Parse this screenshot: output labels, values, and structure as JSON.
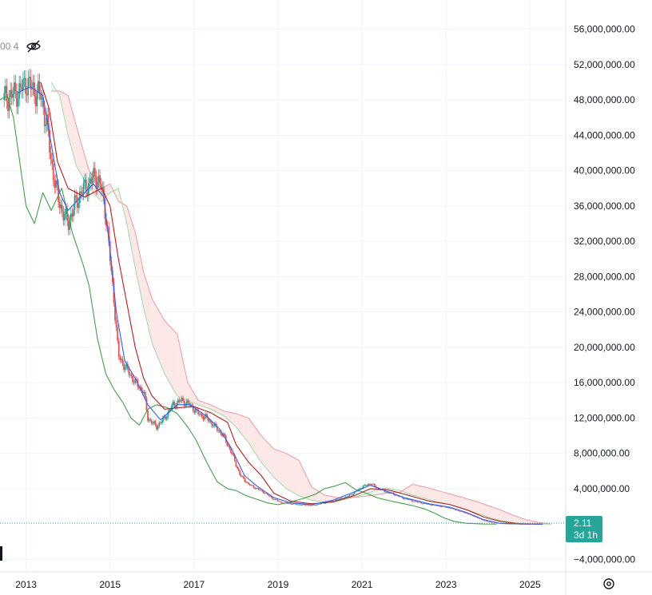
{
  "legend": {
    "fragment": "00 4"
  },
  "price_tag": {
    "value": "2.11",
    "countdown": "3d 1h"
  },
  "colors": {
    "tenkan": "#2962ff",
    "kijun": "#b71c1c",
    "lagging": "#43a047",
    "span_a": "#a5d6a7",
    "span_b": "#ef9a9a",
    "cloud_bull": "#e8f5e9",
    "cloud_bear": "#fde5e5",
    "candle_up": "#26a69a",
    "candle_down": "#ef5350",
    "price_tag_bg": "#26a69a"
  },
  "icons": {
    "visibility": "eye-off-icon",
    "settings": "gear-icon"
  },
  "chart_data": {
    "type": "line",
    "indicator": "ichimoku",
    "x_ticks": [
      "2013",
      "2015",
      "2017",
      "2019",
      "2021",
      "2023",
      "2025"
    ],
    "x_tick_years": [
      2013,
      2015,
      2017,
      2019,
      2021,
      2023,
      2025
    ],
    "y_ticks": [
      {
        "value": 56000000,
        "label": "56,000,000.00"
      },
      {
        "value": 52000000,
        "label": "52,000,000.00"
      },
      {
        "value": 48000000,
        "label": "48,000,000.00"
      },
      {
        "value": 44000000,
        "label": "44,000,000.00"
      },
      {
        "value": 40000000,
        "label": "40,000,000.00"
      },
      {
        "value": 36000000,
        "label": "36,000,000.00"
      },
      {
        "value": 32000000,
        "label": "32,000,000.00"
      },
      {
        "value": 28000000,
        "label": "28,000,000.00"
      },
      {
        "value": 24000000,
        "label": "24,000,000.00"
      },
      {
        "value": 20000000,
        "label": "20,000,000.00"
      },
      {
        "value": 16000000,
        "label": "16,000,000.00"
      },
      {
        "value": 12000000,
        "label": "12,000,000.00"
      },
      {
        "value": 8000000,
        "label": "8,000,000.00"
      },
      {
        "value": 4000000,
        "label": "4,000,000.00"
      },
      {
        "value": -4000000,
        "label": "−4,000,000.00"
      }
    ],
    "ylim": [
      -5400000,
      59300000
    ],
    "xlim": [
      2012.38,
      2025.85
    ],
    "last_value": 2.11,
    "price": [
      [
        2012.45,
        48000000
      ],
      [
        2012.85,
        49000000
      ],
      [
        2013.0,
        50000000
      ],
      [
        2013.2,
        49000000
      ],
      [
        2013.35,
        48500000
      ],
      [
        2013.5,
        45000000
      ],
      [
        2013.6,
        41000000
      ],
      [
        2013.75,
        37000000
      ],
      [
        2013.9,
        35000000
      ],
      [
        2014.0,
        34000000
      ],
      [
        2014.15,
        36000000
      ],
      [
        2014.3,
        37500000
      ],
      [
        2014.5,
        38500000
      ],
      [
        2014.65,
        39500000
      ],
      [
        2014.8,
        38000000
      ],
      [
        2014.9,
        35000000
      ],
      [
        2015.0,
        30000000
      ],
      [
        2015.1,
        25000000
      ],
      [
        2015.2,
        19000000
      ],
      [
        2015.4,
        17500000
      ],
      [
        2015.6,
        16000000
      ],
      [
        2015.8,
        15000000
      ],
      [
        2015.9,
        12000000
      ],
      [
        2016.1,
        11000000
      ],
      [
        2016.3,
        12000000
      ],
      [
        2016.5,
        13500000
      ],
      [
        2016.7,
        14000000
      ],
      [
        2016.9,
        13500000
      ],
      [
        2017.1,
        12500000
      ],
      [
        2017.3,
        12000000
      ],
      [
        2017.5,
        11000000
      ],
      [
        2017.7,
        10000000
      ],
      [
        2017.9,
        8000000
      ],
      [
        2018.1,
        5500000
      ],
      [
        2018.3,
        4500000
      ],
      [
        2018.5,
        4000000
      ],
      [
        2018.7,
        3500000
      ],
      [
        2018.9,
        2800000
      ],
      [
        2019.1,
        2400000
      ],
      [
        2019.3,
        2300000
      ],
      [
        2019.5,
        2200000
      ],
      [
        2019.8,
        2100000
      ],
      [
        2020.0,
        2300000
      ],
      [
        2020.3,
        2600000
      ],
      [
        2020.6,
        3000000
      ],
      [
        2020.8,
        3500000
      ],
      [
        2021.0,
        4200000
      ],
      [
        2021.2,
        4600000
      ],
      [
        2021.4,
        4000000
      ],
      [
        2021.6,
        3600000
      ],
      [
        2021.8,
        3300000
      ],
      [
        2022.0,
        2900000
      ],
      [
        2022.3,
        2500000
      ],
      [
        2022.6,
        2200000
      ],
      [
        2022.9,
        2000000
      ],
      [
        2023.1,
        1800000
      ],
      [
        2023.3,
        1500000
      ],
      [
        2023.5,
        1200000
      ],
      [
        2023.7,
        800000
      ],
      [
        2023.9,
        400000
      ],
      [
        2024.1,
        150000
      ],
      [
        2024.4,
        40000
      ],
      [
        2024.8,
        5
      ],
      [
        2025.3,
        2.11
      ]
    ],
    "tenkan": [
      [
        2012.8,
        48800000
      ],
      [
        2013.1,
        49500000
      ],
      [
        2013.4,
        48500000
      ],
      [
        2013.6,
        43000000
      ],
      [
        2013.8,
        37500000
      ],
      [
        2014.0,
        35500000
      ],
      [
        2014.3,
        37000000
      ],
      [
        2014.6,
        38500000
      ],
      [
        2014.85,
        37000000
      ],
      [
        2015.0,
        31000000
      ],
      [
        2015.15,
        24000000
      ],
      [
        2015.35,
        18500000
      ],
      [
        2015.6,
        16500000
      ],
      [
        2015.9,
        13500000
      ],
      [
        2016.2,
        11800000
      ],
      [
        2016.6,
        13500000
      ],
      [
        2016.9,
        13500000
      ],
      [
        2017.3,
        12200000
      ],
      [
        2017.6,
        10800000
      ],
      [
        2017.9,
        8500000
      ],
      [
        2018.2,
        5500000
      ],
      [
        2018.5,
        4300000
      ],
      [
        2018.9,
        3000000
      ],
      [
        2019.3,
        2400000
      ],
      [
        2019.8,
        2200000
      ],
      [
        2020.3,
        2700000
      ],
      [
        2020.8,
        3600000
      ],
      [
        2021.2,
        4400000
      ],
      [
        2021.6,
        3700000
      ],
      [
        2022.0,
        3000000
      ],
      [
        2022.6,
        2300000
      ],
      [
        2023.1,
        1900000
      ],
      [
        2023.5,
        1300000
      ],
      [
        2023.9,
        500000
      ],
      [
        2024.3,
        80000
      ],
      [
        2025.3,
        3
      ]
    ],
    "kijun": [
      [
        2013.35,
        50000000
      ],
      [
        2013.55,
        47000000
      ],
      [
        2013.75,
        41000000
      ],
      [
        2014.0,
        38000000
      ],
      [
        2014.4,
        37000000
      ],
      [
        2014.8,
        38000000
      ],
      [
        2015.0,
        36000000
      ],
      [
        2015.2,
        30000000
      ],
      [
        2015.4,
        25000000
      ],
      [
        2015.6,
        20000000
      ],
      [
        2015.8,
        16500000
      ],
      [
        2016.0,
        14500000
      ],
      [
        2016.3,
        13000000
      ],
      [
        2016.7,
        13200000
      ],
      [
        2017.0,
        13300000
      ],
      [
        2017.4,
        12600000
      ],
      [
        2017.8,
        11500000
      ],
      [
        2018.0,
        9000000
      ],
      [
        2018.3,
        7000000
      ],
      [
        2018.6,
        5500000
      ],
      [
        2018.9,
        3500000
      ],
      [
        2019.3,
        2600000
      ],
      [
        2019.8,
        2300000
      ],
      [
        2020.3,
        2500000
      ],
      [
        2020.8,
        3200000
      ],
      [
        2021.2,
        4000000
      ],
      [
        2021.6,
        3900000
      ],
      [
        2022.0,
        3400000
      ],
      [
        2022.6,
        2600000
      ],
      [
        2023.1,
        2200000
      ],
      [
        2023.5,
        1600000
      ],
      [
        2023.9,
        800000
      ],
      [
        2024.3,
        300000
      ],
      [
        2024.8,
        20000
      ],
      [
        2025.3,
        5
      ]
    ],
    "lagging": [
      [
        2012.38,
        48000000
      ],
      [
        2012.55,
        48500000
      ],
      [
        2012.7,
        46000000
      ],
      [
        2012.85,
        41000000
      ],
      [
        2013.0,
        36000000
      ],
      [
        2013.2,
        34000000
      ],
      [
        2013.4,
        37500000
      ],
      [
        2013.6,
        35500000
      ],
      [
        2013.85,
        38000000
      ],
      [
        2014.1,
        33000000
      ],
      [
        2014.35,
        29500000
      ],
      [
        2014.5,
        27000000
      ],
      [
        2014.7,
        21000000
      ],
      [
        2014.9,
        17000000
      ],
      [
        2015.1,
        15200000
      ],
      [
        2015.3,
        13800000
      ],
      [
        2015.5,
        12000000
      ],
      [
        2015.7,
        11200000
      ],
      [
        2015.9,
        13000000
      ],
      [
        2016.1,
        13500000
      ],
      [
        2016.35,
        13200000
      ],
      [
        2016.6,
        12500000
      ],
      [
        2016.85,
        11000000
      ],
      [
        2017.05,
        9500000
      ],
      [
        2017.3,
        7000000
      ],
      [
        2017.55,
        4800000
      ],
      [
        2017.8,
        4000000
      ],
      [
        2018.0,
        3800000
      ],
      [
        2018.25,
        3200000
      ],
      [
        2018.5,
        2800000
      ],
      [
        2018.75,
        2400000
      ],
      [
        2019.0,
        2200000
      ],
      [
        2019.3,
        2500000
      ],
      [
        2019.6,
        2900000
      ],
      [
        2019.9,
        3400000
      ],
      [
        2020.1,
        4000000
      ],
      [
        2020.35,
        4300000
      ],
      [
        2020.6,
        4700000
      ],
      [
        2020.85,
        3900000
      ],
      [
        2021.1,
        3500000
      ],
      [
        2021.35,
        3000000
      ],
      [
        2021.6,
        2700000
      ],
      [
        2021.9,
        2400000
      ],
      [
        2022.2,
        2100000
      ],
      [
        2022.5,
        1700000
      ],
      [
        2022.75,
        1200000
      ],
      [
        2022.95,
        700000
      ],
      [
        2023.2,
        300000
      ],
      [
        2023.5,
        80000
      ],
      [
        2023.9,
        10000
      ],
      [
        2024.2,
        2
      ]
    ],
    "cloud": [
      [
        2013.6,
        50000000,
        49000000
      ],
      [
        2013.8,
        48500000,
        49000000
      ],
      [
        2014.0,
        44000000,
        48500000
      ],
      [
        2014.2,
        40500000,
        45000000
      ],
      [
        2014.5,
        38000000,
        40000000
      ],
      [
        2014.8,
        36500000,
        38000000
      ],
      [
        2015.0,
        37500000,
        38500000
      ],
      [
        2015.2,
        38000000,
        36500000
      ],
      [
        2015.4,
        34000000,
        36000000
      ],
      [
        2015.6,
        29000000,
        33000000
      ],
      [
        2015.8,
        24500000,
        28500000
      ],
      [
        2016.0,
        20500000,
        25500000
      ],
      [
        2016.3,
        17000000,
        23000000
      ],
      [
        2016.6,
        14500000,
        21500000
      ],
      [
        2016.85,
        14000000,
        16000000
      ],
      [
        2017.1,
        13500000,
        14000000
      ],
      [
        2017.4,
        13000000,
        13500000
      ],
      [
        2017.7,
        12300000,
        12800000
      ],
      [
        2018.0,
        11000000,
        12500000
      ],
      [
        2018.3,
        9200000,
        12000000
      ],
      [
        2018.6,
        7000000,
        10000000
      ],
      [
        2018.9,
        5300000,
        8500000
      ],
      [
        2019.2,
        4000000,
        8000000
      ],
      [
        2019.5,
        3200000,
        7200000
      ],
      [
        2019.8,
        2700000,
        4200000
      ],
      [
        2020.1,
        2500000,
        3300000
      ],
      [
        2020.4,
        2600000,
        3000000
      ],
      [
        2020.7,
        2900000,
        3000000
      ],
      [
        2021.0,
        3300000,
        3100000
      ],
      [
        2021.3,
        3800000,
        3300000
      ],
      [
        2021.6,
        4100000,
        3500000
      ],
      [
        2021.9,
        3800000,
        3600000
      ],
      [
        2022.2,
        3300000,
        4500000
      ],
      [
        2022.5,
        2900000,
        4200000
      ],
      [
        2022.8,
        2500000,
        3800000
      ],
      [
        2023.1,
        2200000,
        3400000
      ],
      [
        2023.4,
        1800000,
        3000000
      ],
      [
        2023.7,
        1300000,
        2600000
      ],
      [
        2024.0,
        800000,
        2100000
      ],
      [
        2024.3,
        400000,
        1600000
      ],
      [
        2024.6,
        150000,
        1000000
      ],
      [
        2024.9,
        50000,
        500000
      ],
      [
        2025.2,
        10000,
        200000
      ],
      [
        2025.5,
        2,
        10000
      ]
    ]
  }
}
